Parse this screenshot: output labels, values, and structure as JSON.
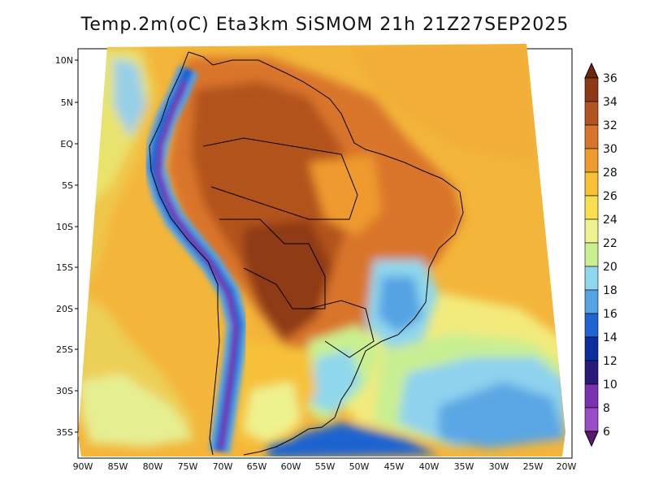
{
  "title": "Temp.2m(oC) Eta3km SiSMOM 21h 21Z27SEP2025",
  "map": {
    "lat_ticks": [
      "10N",
      "5N",
      "EQ",
      "5S",
      "10S",
      "15S",
      "20S",
      "25S",
      "30S",
      "35S"
    ],
    "lon_ticks": [
      "90W",
      "85W",
      "80W",
      "75W",
      "70W",
      "65W",
      "60W",
      "55W",
      "50W",
      "45W",
      "40W",
      "35W",
      "30W",
      "25W",
      "20W"
    ]
  },
  "colorbar": {
    "labels": [
      "36",
      "34",
      "32",
      "30",
      "28",
      "26",
      "24",
      "22",
      "20",
      "18",
      "16",
      "14",
      "12",
      "10",
      "8",
      "6"
    ],
    "colors": [
      "#6b2a10",
      "#8e3a16",
      "#b3531f",
      "#d9742c",
      "#ee9a2e",
      "#f6c137",
      "#f8df4f",
      "#eef28e",
      "#c9ef8f",
      "#8fd7ec",
      "#55a3e4",
      "#1f64d0",
      "#0b2f9e",
      "#2a1a7a",
      "#7a32b0",
      "#9b4cc8",
      "#5b1a6f"
    ]
  }
}
